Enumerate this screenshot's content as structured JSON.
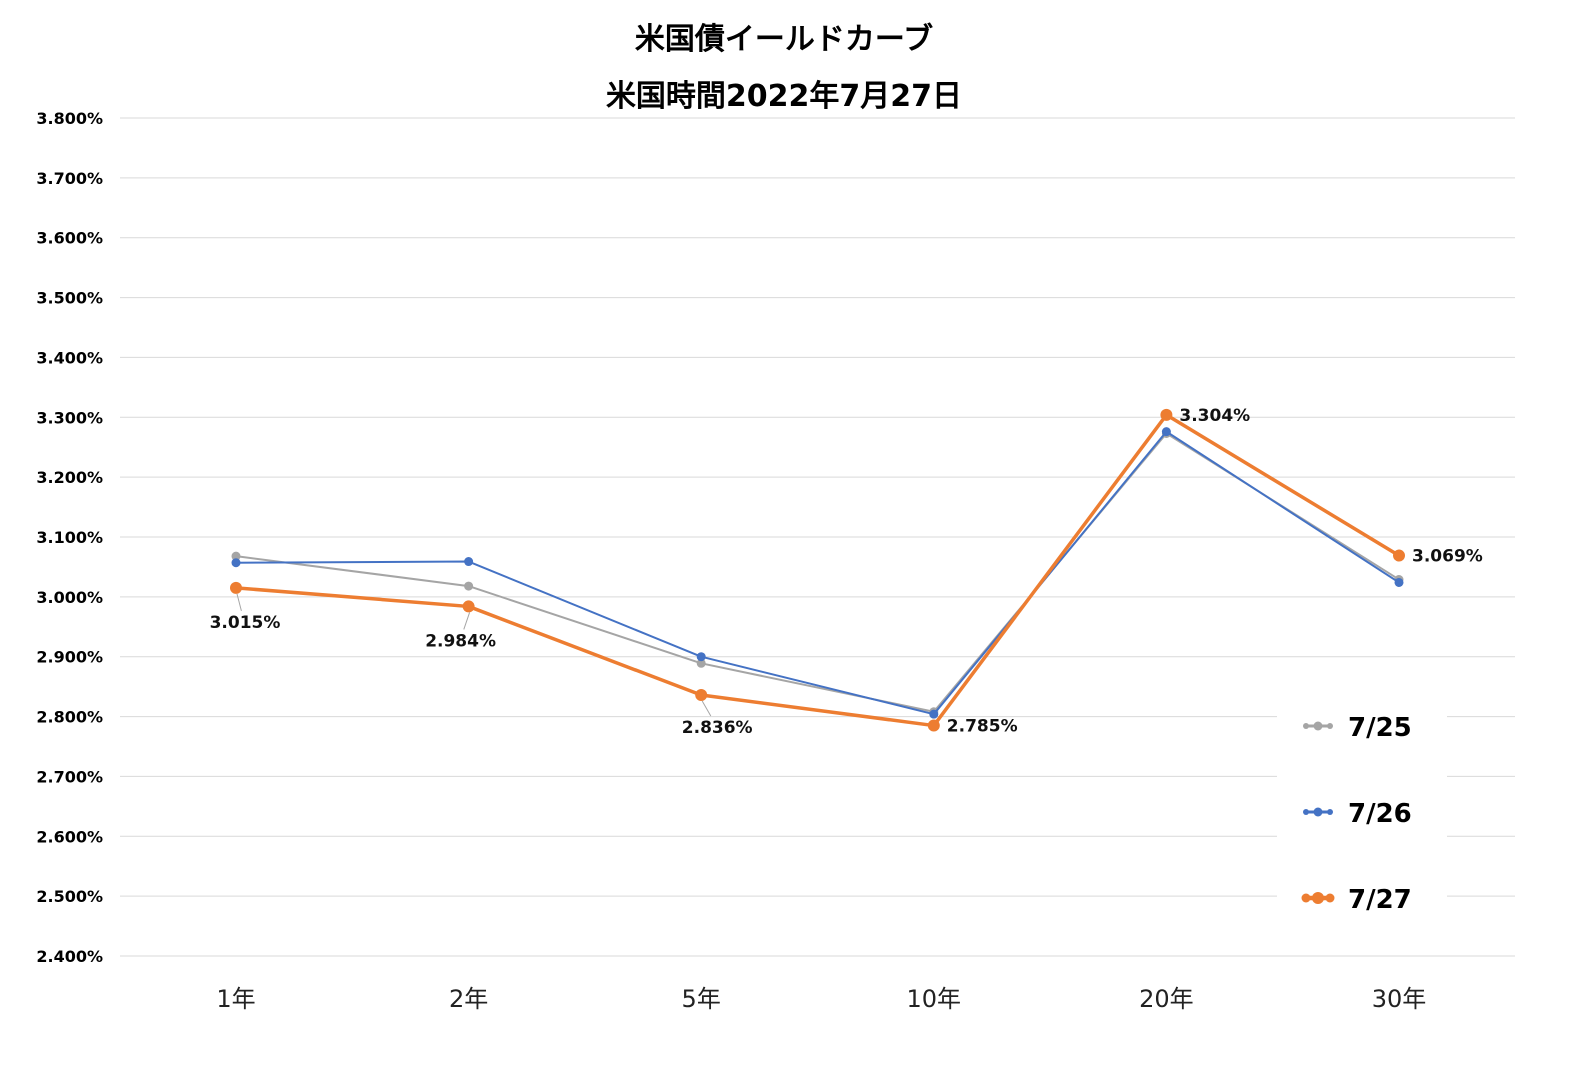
{
  "chart_data": {
    "type": "line",
    "title": "米国債イールドカーブ",
    "subtitle": "米国時間2022年7月27日",
    "categories": [
      "1年",
      "2年",
      "5年",
      "10年",
      "20年",
      "30年"
    ],
    "yticks": [
      "3.800%",
      "3.700%",
      "3.600%",
      "3.500%",
      "3.400%",
      "3.300%",
      "3.200%",
      "3.100%",
      "3.000%",
      "2.900%",
      "2.800%",
      "2.700%",
      "2.600%",
      "2.500%",
      "2.400%"
    ],
    "ylim": [
      2.4,
      3.8
    ],
    "grid": true,
    "legend_position": "right",
    "series": [
      {
        "name": "7/25",
        "color": "#a5a5a5",
        "values": [
          3.068,
          3.018,
          2.889,
          2.808,
          3.273,
          3.029
        ]
      },
      {
        "name": "7/26",
        "color": "#4472c4",
        "values": [
          3.057,
          3.059,
          2.9,
          2.804,
          3.276,
          3.024
        ]
      },
      {
        "name": "7/27",
        "color": "#ed7d31",
        "values": [
          3.015,
          2.984,
          2.836,
          2.785,
          3.304,
          3.069
        ]
      }
    ],
    "data_labels": [
      "3.015%",
      "2.984%",
      "2.836%",
      "2.785%",
      "3.304%",
      "3.069%"
    ]
  }
}
